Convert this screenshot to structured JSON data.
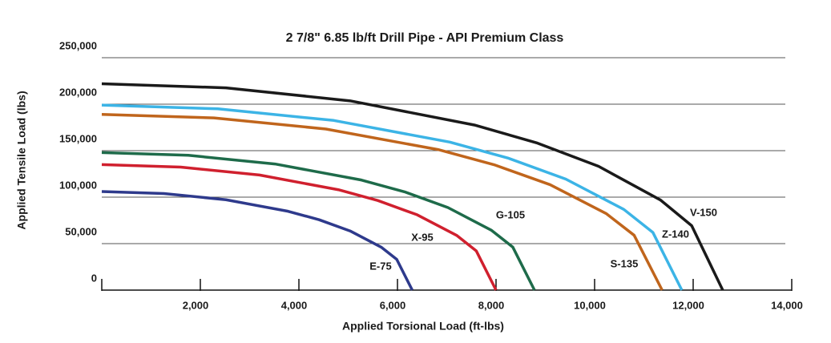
{
  "chart_data": {
    "type": "line",
    "title": "2 7/8\" 6.85 lb/ft Drill Pipe - API Premium Class",
    "x_label": "Applied Torsional Load (ft-lbs)",
    "y_label": "Applied Tensile Load (lbs)",
    "xlim": [
      0,
      14000
    ],
    "xticks": [
      {
        "value": 2000,
        "label": "2,000"
      },
      {
        "value": 4000,
        "label": "4,000"
      },
      {
        "value": 6000,
        "label": "6,000"
      },
      {
        "value": 8000,
        "label": "8,000"
      },
      {
        "value": 10000,
        "label": "10,000"
      },
      {
        "value": 12000,
        "label": "12,000"
      },
      {
        "value": 14000,
        "label": "14,000"
      }
    ],
    "ylim": [
      0,
      250000
    ],
    "yticks": [
      0,
      {
        "value": 50000,
        "label": "50,000"
      },
      {
        "value": 100000,
        "label": "100,000"
      },
      {
        "value": 150000,
        "label": "150,000"
      },
      {
        "value": 200000,
        "label": "200,000"
      },
      {
        "value": 250000,
        "label": "250,000"
      }
    ],
    "grid": true,
    "series": [
      {
        "name": "E-75",
        "color": "#2e3a8c",
        "x": [
          0,
          1260,
          2520,
          3780,
          4410,
          5040,
          5670,
          5985,
          6300
        ],
        "values": [
          106000,
          103900,
          97200,
          84800,
          75700,
          63600,
          46200,
          33100,
          0
        ]
      },
      {
        "name": "X-95",
        "color": "#d0202e",
        "x": [
          0,
          1600,
          3200,
          4800,
          5600,
          6400,
          7200,
          7600,
          8000
        ],
        "values": [
          135000,
          132300,
          123800,
          108000,
          96400,
          81000,
          58900,
          42100,
          0
        ]
      },
      {
        "name": "G-105",
        "color": "#1e6b4a",
        "x": [
          0,
          1756,
          3512,
          5268,
          6146,
          7024,
          7902,
          8341,
          8780
        ],
        "values": [
          148000,
          145000,
          135700,
          118400,
          105700,
          88800,
          64500,
          46200,
          0
        ]
      },
      {
        "name": "S-135",
        "color": "#c0651c",
        "x": [
          0,
          2274,
          4548,
          6822,
          7959,
          9096,
          10233,
          10802,
          11370
        ],
        "values": [
          189000,
          185200,
          173300,
          151200,
          134900,
          113400,
          82400,
          59000,
          0
        ]
      },
      {
        "name": "Z-140",
        "color": "#3cb4e6",
        "x": [
          0,
          2354,
          4708,
          7062,
          8239,
          9416,
          10593,
          11182,
          11770
        ],
        "values": [
          199000,
          195000,
          182500,
          159200,
          142100,
          119400,
          86800,
          62100,
          0
        ]
      },
      {
        "name": "V-150",
        "color": "#1a1a1a",
        "x": [
          0,
          2520,
          5040,
          7560,
          8820,
          10080,
          11340,
          11970,
          12600
        ],
        "values": [
          222000,
          217600,
          203600,
          177600,
          158500,
          133200,
          96800,
          69300,
          0
        ]
      }
    ]
  }
}
